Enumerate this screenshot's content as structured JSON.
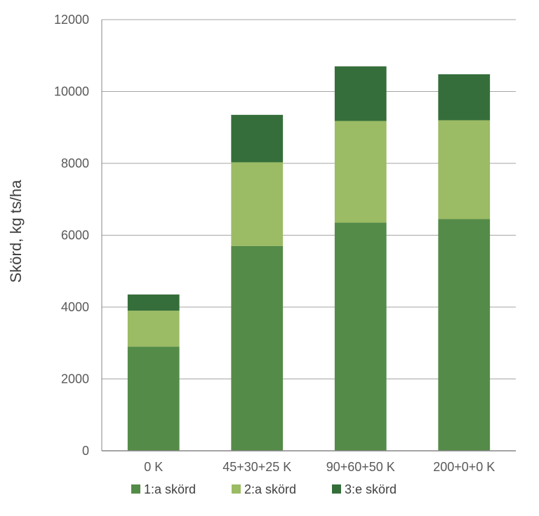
{
  "chart_data": {
    "type": "bar",
    "stacked": true,
    "ylabel": "Skörd, kg ts/ha",
    "xlabel": "",
    "ylim": [
      0,
      12000
    ],
    "yticks": [
      0,
      2000,
      4000,
      6000,
      8000,
      10000,
      12000
    ],
    "grid": true,
    "legend_position": "bottom",
    "categories": [
      "0 K",
      "45+30+25 K",
      "90+60+50 K",
      "200+0+0 K"
    ],
    "series": [
      {
        "name": "1:a skörd",
        "color": "#548b48",
        "values": [
          2900,
          5700,
          6350,
          6450
        ]
      },
      {
        "name": "2:a skörd",
        "color": "#9bbb64",
        "values": [
          1000,
          2330,
          2830,
          2750
        ]
      },
      {
        "name": "3:e skörd",
        "color": "#356e3a",
        "values": [
          450,
          1320,
          1520,
          1280
        ]
      }
    ]
  }
}
